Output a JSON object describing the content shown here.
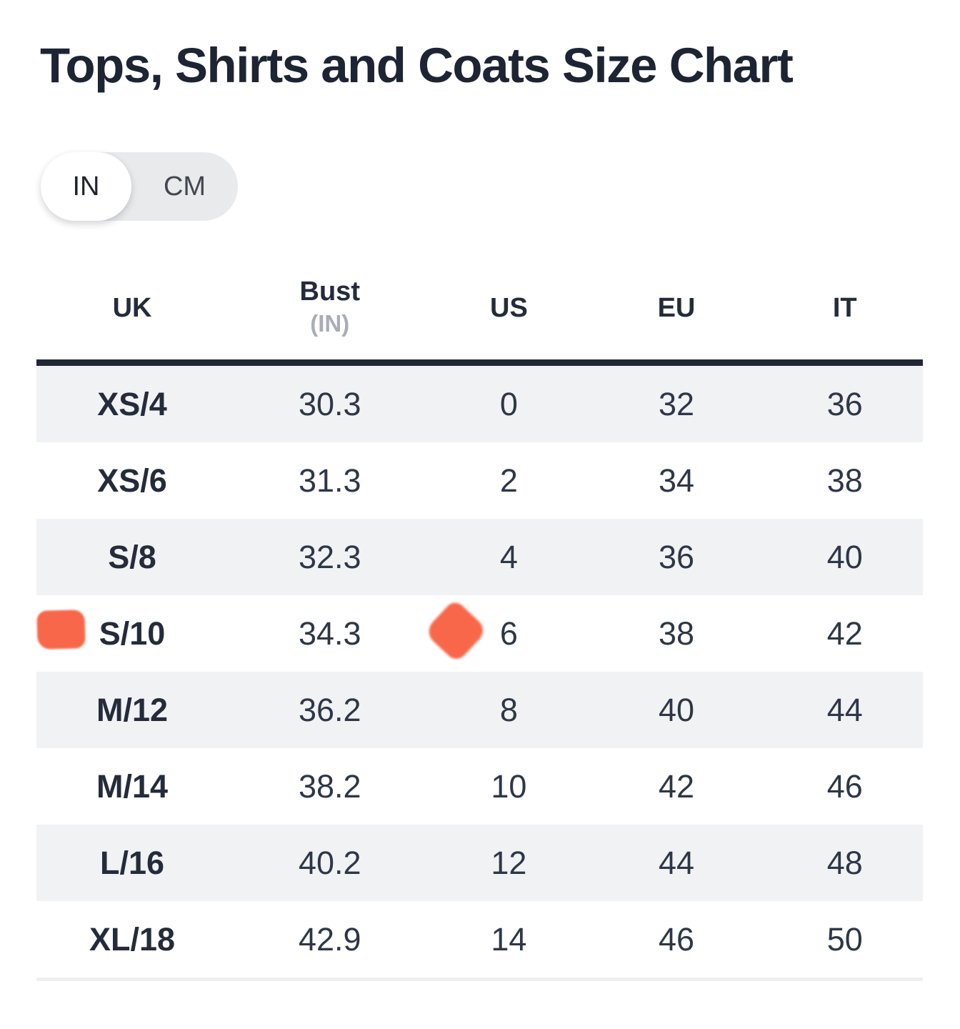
{
  "page": {
    "title": "Tops, Shirts and Coats Size Chart"
  },
  "unit_toggle": {
    "options": [
      "IN",
      "CM"
    ],
    "selected": "IN"
  },
  "size_table": {
    "columns": [
      {
        "key": "uk",
        "label": "UK",
        "unit": ""
      },
      {
        "key": "bust",
        "label": "Bust",
        "unit": "(IN)"
      },
      {
        "key": "us",
        "label": "US",
        "unit": ""
      },
      {
        "key": "eu",
        "label": "EU",
        "unit": ""
      },
      {
        "key": "it",
        "label": "IT",
        "unit": ""
      }
    ],
    "rows": [
      {
        "uk": "XS/4",
        "bust": "30.3",
        "us": "0",
        "eu": "32",
        "it": "36",
        "highlighted": false
      },
      {
        "uk": "XS/6",
        "bust": "31.3",
        "us": "2",
        "eu": "34",
        "it": "38",
        "highlighted": false
      },
      {
        "uk": "S/8",
        "bust": "32.3",
        "us": "4",
        "eu": "36",
        "it": "40",
        "highlighted": false
      },
      {
        "uk": "S/10",
        "bust": "34.3",
        "us": "6",
        "eu": "38",
        "it": "42",
        "highlighted": true
      },
      {
        "uk": "M/12",
        "bust": "36.2",
        "us": "8",
        "eu": "40",
        "it": "44",
        "highlighted": false
      },
      {
        "uk": "M/14",
        "bust": "38.2",
        "us": "10",
        "eu": "42",
        "it": "46",
        "highlighted": false
      },
      {
        "uk": "L/16",
        "bust": "40.2",
        "us": "12",
        "eu": "44",
        "it": "48",
        "highlighted": false
      },
      {
        "uk": "XL/18",
        "bust": "42.9",
        "us": "14",
        "eu": "46",
        "it": "50",
        "highlighted": false
      }
    ]
  },
  "annotations": {
    "marker_color": "#f9674a",
    "markers": [
      {
        "shape": "rounded-rect",
        "target": "S/10 row UK label"
      },
      {
        "shape": "diamond",
        "target": "S/10 row US value 6"
      }
    ]
  },
  "colors": {
    "title_text": "#1d2433",
    "header_text": "#242c3b",
    "header_unit_text": "#a8adb6",
    "cell_text": "#2e3747",
    "row_stripe": "#f1f2f4",
    "header_border": "#212735",
    "bottom_border": "#edeff1",
    "toggle_track": "#e9eaec",
    "toggle_knob": "#ffffff",
    "highlight_marker": "#f9674a"
  }
}
